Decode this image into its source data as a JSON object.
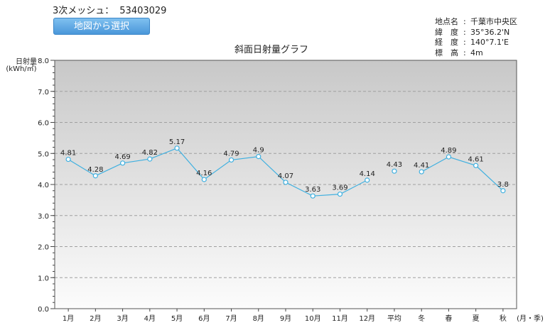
{
  "header": {
    "mesh_label": "3次メッシュ：",
    "mesh_code": "53403029",
    "select_button_label": "地図から選択"
  },
  "location": {
    "rows": [
      {
        "label": "地点名",
        "value": "千葉市中央区"
      },
      {
        "label": "緯　度",
        "value": "35°36.2'N"
      },
      {
        "label": "経　度",
        "value": "140°7.1'E"
      },
      {
        "label": "標　高",
        "value": "4m"
      }
    ]
  },
  "chart_data": {
    "type": "line",
    "title": "斜面日射量グラフ",
    "ylabel": "日射量",
    "yunit": "(kWh/㎡)",
    "xunit": "(月・季)",
    "ylim": [
      0,
      8
    ],
    "yticks": [
      "0.0",
      "1.0",
      "2.0",
      "3.0",
      "4.0",
      "5.0",
      "6.0",
      "7.0",
      "8.0"
    ],
    "grid": true,
    "categories": [
      "1月",
      "2月",
      "3月",
      "4月",
      "5月",
      "6月",
      "7月",
      "8月",
      "9月",
      "10月",
      "11月",
      "12月",
      "平均",
      "冬",
      "春",
      "夏",
      "秋"
    ],
    "values": [
      4.81,
      4.28,
      4.69,
      4.82,
      5.17,
      4.16,
      4.79,
      4.9,
      4.07,
      3.63,
      3.69,
      4.14,
      4.43,
      4.41,
      4.89,
      4.61,
      3.8
    ],
    "value_labels": [
      "4.81",
      "4.28",
      "4.69",
      "4.82",
      "5.17",
      "4.16",
      "4.79",
      "4.9",
      "4.07",
      "3.63",
      "3.69",
      "4.14",
      "4.43",
      "4.41",
      "4.89",
      "4.61",
      "3.8"
    ],
    "line_segments": [
      [
        0,
        11
      ],
      [
        13,
        16
      ]
    ],
    "colors": {
      "line": "#3fb0e0",
      "grid": "#a0a0a0",
      "bg_top": "#c8c8c8",
      "bg_bottom": "#fcfcfc"
    }
  }
}
